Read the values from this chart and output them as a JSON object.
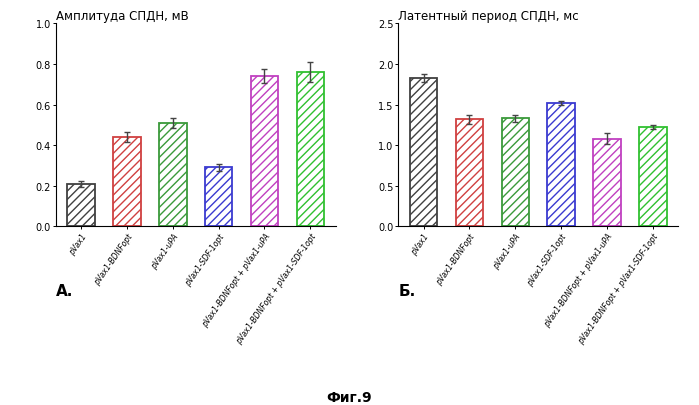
{
  "chart_A": {
    "title": "Амплитуда СПДН, мВ",
    "values": [
      0.21,
      0.44,
      0.51,
      0.29,
      0.74,
      0.76
    ],
    "errors": [
      0.015,
      0.025,
      0.025,
      0.018,
      0.035,
      0.05
    ],
    "colors": [
      "#404040",
      "#d04040",
      "#3a9a3a",
      "#3a3ad0",
      "#c040c0",
      "#30c030"
    ],
    "ylim": [
      0.0,
      1.0
    ],
    "yticks": [
      0.0,
      0.2,
      0.4,
      0.6,
      0.8,
      1.0
    ],
    "label": "А."
  },
  "chart_B": {
    "title": "Латентный период СПДН, мс",
    "values": [
      1.83,
      1.32,
      1.33,
      1.52,
      1.08,
      1.22
    ],
    "errors": [
      0.05,
      0.055,
      0.04,
      0.03,
      0.07,
      0.025
    ],
    "colors": [
      "#404040",
      "#d04040",
      "#3a9a3a",
      "#3a3ad0",
      "#c040c0",
      "#30c030"
    ],
    "ylim": [
      0.0,
      2.5
    ],
    "yticks": [
      0.0,
      0.5,
      1.0,
      1.5,
      2.0,
      2.5
    ],
    "label": "Б."
  },
  "categories": [
    "pVax1",
    "pVax1-BDNFopt",
    "pVax1-uPA",
    "pVax1-SDF-1opt",
    "pVax1-BDNFopt + pVax1-uPA",
    "pVax1-BDNFopt + pVax1-SDF-1opt"
  ],
  "figure_label": "Фиг.9",
  "background_color": "#ffffff",
  "hatch_pattern": "////"
}
